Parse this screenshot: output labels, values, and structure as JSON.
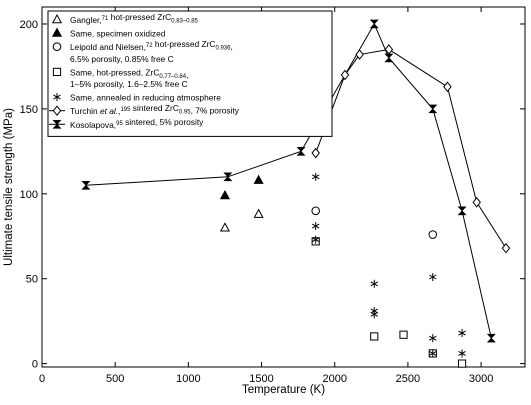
{
  "chart_data": {
    "type": "scatter",
    "title": "",
    "xlabel": "Temperature (K)",
    "ylabel": "Ultimate tensile strength (MPa)",
    "xlim": [
      0,
      3300
    ],
    "ylim": [
      -2,
      210
    ],
    "xticks": [
      0,
      500,
      1000,
      1500,
      2000,
      2500,
      3000
    ],
    "yticks": [
      0,
      50,
      100,
      150,
      200
    ],
    "grid": false,
    "legend_position": "top-left",
    "series": [
      {
        "id": "s1",
        "marker": "triangle-open",
        "line": false,
        "legend_lines": [
          [
            {
              "t": "Gangler,"
            },
            {
              "t": "71",
              "sup": true
            },
            {
              "t": " hot-pressed ZrC"
            },
            {
              "t": "0.83–0.85",
              "sub": true
            }
          ]
        ],
        "points": [
          [
            1250,
            80
          ],
          [
            1480,
            88
          ]
        ]
      },
      {
        "id": "s2",
        "marker": "triangle-filled",
        "line": false,
        "legend_lines": [
          [
            {
              "t": "Same, specimen oxidized"
            }
          ]
        ],
        "points": [
          [
            1250,
            99
          ],
          [
            1480,
            108
          ]
        ]
      },
      {
        "id": "s3",
        "marker": "circle-open",
        "line": false,
        "legend_lines": [
          [
            {
              "t": "Leipold and Nielsen,"
            },
            {
              "t": "72",
              "sup": true
            },
            {
              "t": " hot-pressed ZrC"
            },
            {
              "t": "0.936",
              "sub": true
            },
            {
              "t": ","
            }
          ],
          [
            {
              "t": "6.5% porosity, 0.85% free C"
            }
          ]
        ],
        "points": [
          [
            1870,
            90
          ],
          [
            2670,
            76
          ]
        ]
      },
      {
        "id": "s4",
        "marker": "square-open",
        "line": false,
        "legend_lines": [
          [
            {
              "t": "Same, hot-pressed, ZrC"
            },
            {
              "t": "0.77–0.84",
              "sub": true
            },
            {
              "t": ","
            }
          ],
          [
            {
              "t": "1–5% porosity, 1.6–2.5% free C"
            }
          ]
        ],
        "points": [
          [
            1870,
            72
          ],
          [
            2270,
            16
          ],
          [
            2470,
            17
          ],
          [
            2670,
            6
          ],
          [
            2870,
            0
          ]
        ]
      },
      {
        "id": "s5",
        "marker": "asterisk",
        "line": false,
        "legend_lines": [
          [
            {
              "t": "Same, annealed in reducing atmosphere"
            }
          ]
        ],
        "points": [
          [
            1870,
            110
          ],
          [
            1870,
            81
          ],
          [
            1870,
            73
          ],
          [
            2270,
            47
          ],
          [
            2270,
            31
          ],
          [
            2270,
            29
          ],
          [
            2670,
            51
          ],
          [
            2670,
            15
          ],
          [
            2670,
            6
          ],
          [
            2870,
            18
          ],
          [
            2870,
            6
          ]
        ]
      },
      {
        "id": "s6",
        "marker": "diamond-open",
        "line": true,
        "legend_lines": [
          [
            {
              "t": "Turchin "
            },
            {
              "t": "et al.",
              "italic": true
            },
            {
              "t": ","
            },
            {
              "t": "195",
              "sup": true
            },
            {
              "t": " sintered ZrC"
            },
            {
              "t": "0.95",
              "sub": true
            },
            {
              "t": ", 7% porosity"
            }
          ]
        ],
        "points": [
          [
            1870,
            124
          ],
          [
            2070,
            170
          ],
          [
            2170,
            182
          ],
          [
            2370,
            185
          ],
          [
            2770,
            163
          ],
          [
            2970,
            95
          ],
          [
            3170,
            68
          ]
        ]
      },
      {
        "id": "s7",
        "marker": "bowtie",
        "line": true,
        "legend_lines": [
          [
            {
              "t": "Kosolapova,"
            },
            {
              "t": "95",
              "sup": true
            },
            {
              "t": " sintered, 5% porosity"
            }
          ]
        ],
        "points": [
          [
            300,
            105
          ],
          [
            1270,
            110
          ],
          [
            1770,
            125
          ],
          [
            2270,
            200
          ],
          [
            2370,
            180
          ],
          [
            2670,
            150
          ],
          [
            2870,
            90
          ],
          [
            3070,
            15
          ]
        ]
      }
    ]
  }
}
